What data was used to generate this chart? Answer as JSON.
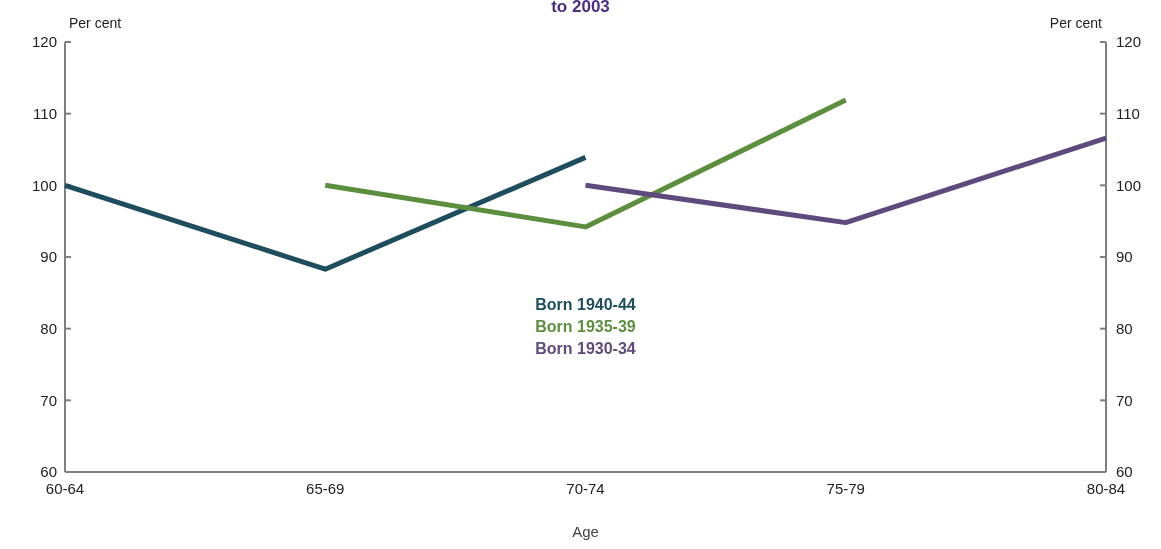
{
  "chart_data": {
    "type": "line",
    "title": "to 2003",
    "xlabel": "Age",
    "ylabel": "Per cent",
    "y2label": "Per cent",
    "categories": [
      "60-64",
      "65-69",
      "70-74",
      "75-79",
      "80-84"
    ],
    "series": [
      {
        "name": "Born 1940-44",
        "color": "#1e4d5e",
        "values": [
          100,
          88.3,
          103.9,
          null,
          null
        ]
      },
      {
        "name": "Born 1935-39",
        "color": "#5b8f3e",
        "values": [
          null,
          100,
          94.2,
          111.9,
          null
        ]
      },
      {
        "name": "Born 1930-34",
        "color": "#5e4a7c",
        "values": [
          null,
          null,
          100,
          94.8,
          106.6
        ]
      }
    ],
    "ylim": [
      60,
      120
    ],
    "yticks": [
      60,
      70,
      80,
      90,
      100,
      110,
      120
    ],
    "y2lim": [
      60,
      120
    ],
    "y2ticks": [
      60,
      70,
      80,
      90,
      100,
      110,
      120
    ],
    "grid": false,
    "legend": "center",
    "marker": "none",
    "line_style": "solid"
  }
}
